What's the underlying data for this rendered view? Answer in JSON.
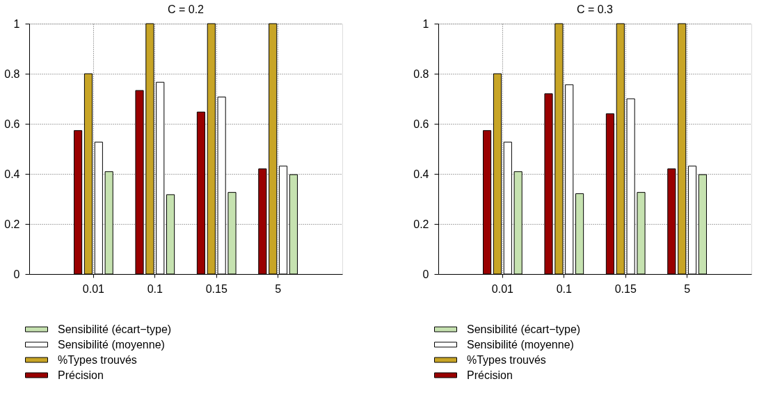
{
  "chart_data": [
    {
      "type": "bar",
      "title": "C = 0.2",
      "categories": [
        "0.01",
        "0.1",
        "0.15",
        "5"
      ],
      "series": [
        {
          "name": "Précision",
          "color": "#990000",
          "values": [
            0.573,
            0.733,
            0.647,
            0.42
          ]
        },
        {
          "name": "%Types trouvés",
          "color": "#c8a526",
          "values": [
            0.8,
            1,
            1,
            1
          ]
        },
        {
          "name": "Sensibilité (moyenne)",
          "color": "#ffffff",
          "values": [
            0.527,
            0.766,
            0.707,
            0.431
          ]
        },
        {
          "name": "Sensibilité (écart−type)",
          "color": "#c6e2b0",
          "values": [
            0.409,
            0.317,
            0.326,
            0.397
          ]
        }
      ],
      "ylim": [
        0,
        1
      ],
      "yticks": [
        0,
        0.2,
        0.4,
        0.6,
        0.8,
        1
      ],
      "grid": true,
      "legend": "bottom"
    },
    {
      "type": "bar",
      "title": "C = 0.3",
      "categories": [
        "0.01",
        "0.1",
        "0.15",
        "5"
      ],
      "series": [
        {
          "name": "Précision",
          "color": "#990000",
          "values": [
            0.573,
            0.72,
            0.64,
            0.42
          ]
        },
        {
          "name": "%Types trouvés",
          "color": "#c8a526",
          "values": [
            0.8,
            1,
            1,
            1
          ]
        },
        {
          "name": "Sensibilité (moyenne)",
          "color": "#ffffff",
          "values": [
            0.527,
            0.756,
            0.7,
            0.431
          ]
        },
        {
          "name": "Sensibilité (écart−type)",
          "color": "#c6e2b0",
          "values": [
            0.409,
            0.321,
            0.326,
            0.397
          ]
        }
      ],
      "ylim": [
        0,
        1
      ],
      "yticks": [
        0,
        0.2,
        0.4,
        0.6,
        0.8,
        1
      ],
      "grid": true,
      "legend": "bottom"
    }
  ]
}
